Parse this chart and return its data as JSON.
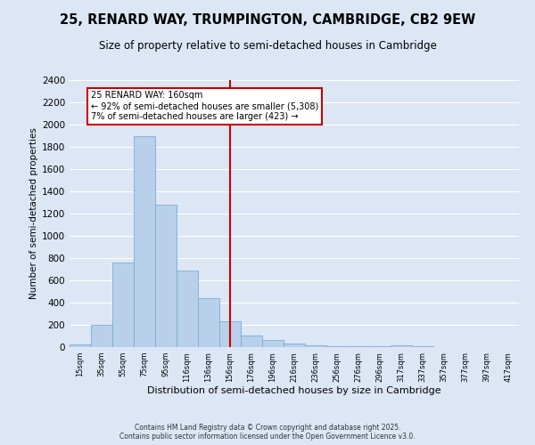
{
  "title": "25, RENARD WAY, TRUMPINGTON, CAMBRIDGE, CB2 9EW",
  "subtitle": "Size of property relative to semi-detached houses in Cambridge",
  "xlabel": "Distribution of semi-detached houses by size in Cambridge",
  "ylabel": "Number of semi-detached properties",
  "bar_color": "#b8d0ea",
  "bar_edge_color": "#7aadd4",
  "background_color": "#dce6f5",
  "grid_color": "#ffffff",
  "categories": [
    "15sqm",
    "35sqm",
    "55sqm",
    "75sqm",
    "95sqm",
    "116sqm",
    "136sqm",
    "156sqm",
    "176sqm",
    "196sqm",
    "216sqm",
    "236sqm",
    "256sqm",
    "276sqm",
    "296sqm",
    "317sqm",
    "337sqm",
    "357sqm",
    "377sqm",
    "397sqm",
    "417sqm"
  ],
  "values": [
    25,
    200,
    760,
    1900,
    1280,
    690,
    440,
    230,
    105,
    65,
    35,
    20,
    12,
    10,
    10,
    18,
    5,
    2,
    1,
    1,
    1
  ],
  "vline_x_index": 7,
  "vline_label": "25 RENARD WAY: 160sqm",
  "annotation_line1": "← 92% of semi-detached houses are smaller (5,308)",
  "annotation_line2": "7% of semi-detached houses are larger (423) →",
  "ylim_max": 2400,
  "ytick_step": 200,
  "vline_color": "#cc0000",
  "annotation_box_edgecolor": "#cc0000",
  "footer_line1": "Contains HM Land Registry data © Crown copyright and database right 2025.",
  "footer_line2": "Contains public sector information licensed under the Open Government Licence v3.0."
}
